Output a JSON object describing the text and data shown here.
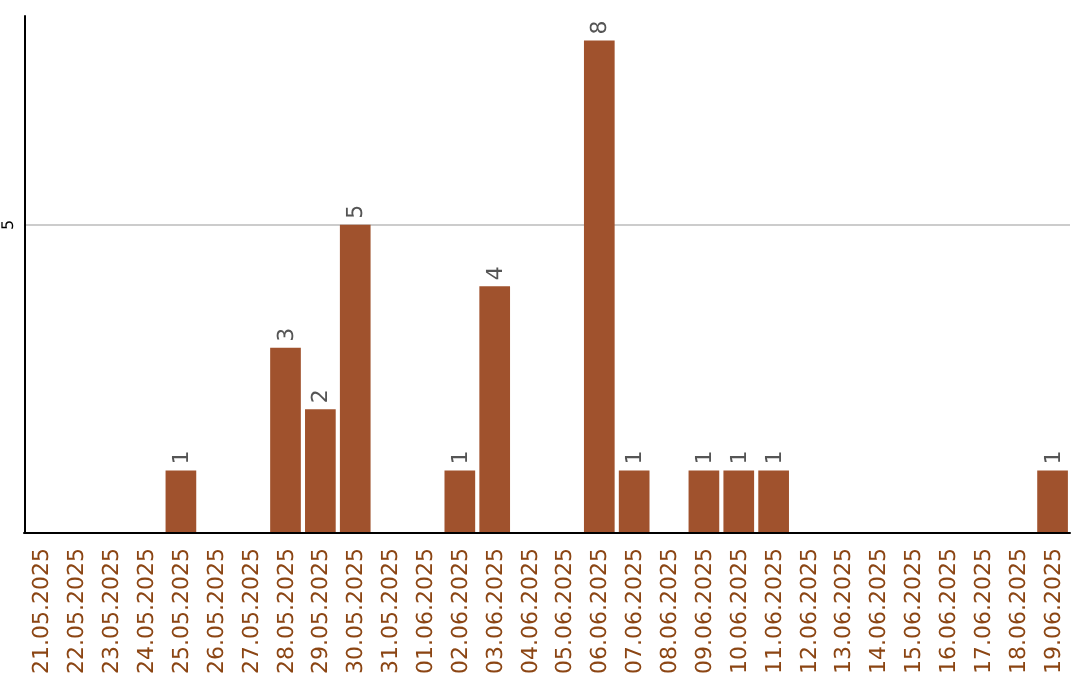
{
  "chart_data": {
    "type": "bar",
    "categories": [
      "21.05.2025",
      "22.05.2025",
      "23.05.2025",
      "24.05.2025",
      "25.05.2025",
      "26.05.2025",
      "27.05.2025",
      "28.05.2025",
      "29.05.2025",
      "30.05.2025",
      "31.05.2025",
      "01.06.2025",
      "02.06.2025",
      "03.06.2025",
      "04.06.2025",
      "05.06.2025",
      "06.06.2025",
      "07.06.2025",
      "08.06.2025",
      "09.06.2025",
      "10.06.2025",
      "11.06.2025",
      "12.06.2025",
      "13.06.2025",
      "14.06.2025",
      "15.06.2025",
      "16.06.2025",
      "17.06.2025",
      "18.06.2025",
      "19.06.2025"
    ],
    "values": [
      0,
      0,
      0,
      0,
      1,
      0,
      0,
      3,
      2,
      5,
      0,
      0,
      1,
      4,
      0,
      0,
      8,
      1,
      0,
      1,
      1,
      1,
      0,
      0,
      0,
      0,
      0,
      0,
      0,
      1
    ],
    "value_labels": [
      null,
      null,
      null,
      null,
      "1",
      null,
      null,
      "3",
      "2",
      "5",
      null,
      null,
      "1",
      "4",
      null,
      null,
      "8",
      "1",
      null,
      "1",
      "1",
      "1",
      null,
      null,
      null,
      null,
      null,
      null,
      null,
      "1"
    ],
    "color": "#a0522d",
    "ylim": [
      0,
      8.4
    ],
    "yticks": [
      5
    ],
    "grid": "y"
  }
}
